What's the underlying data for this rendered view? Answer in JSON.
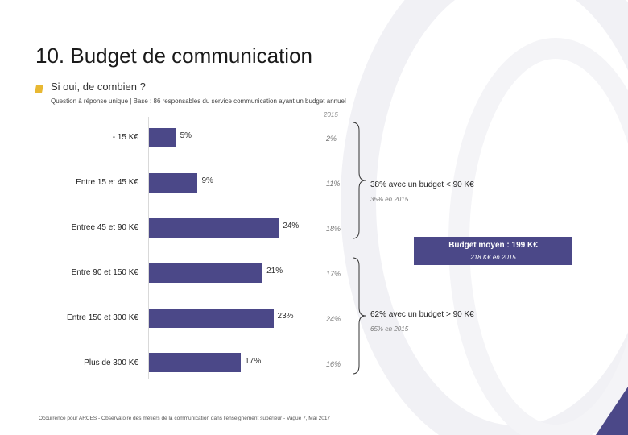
{
  "header": {
    "title": "10. Budget de communication",
    "subtitle": "Si oui, de combien ?",
    "question_note": "Question à réponse unique | Base : 86 responsables du service communication ayant un budget annuel"
  },
  "colors": {
    "bar": "#4b4888",
    "accent": "#e8b832"
  },
  "chart_data": {
    "type": "bar",
    "orientation": "horizontal",
    "categories": [
      "- 15 K€",
      "Entre 15 et 45 K€",
      "Entree 45 et 90 K€",
      "Entre 90 et 150 K€",
      "Entre 150 et 300 K€",
      "Plus de 300 K€"
    ],
    "series": [
      {
        "name": "current",
        "values": [
          5,
          9,
          24,
          21,
          23,
          17
        ],
        "labels": [
          "5%",
          "9%",
          "24%",
          "21%",
          "23%",
          "17%"
        ]
      },
      {
        "name": "2015",
        "values": [
          2,
          11,
          18,
          17,
          24,
          16
        ],
        "labels": [
          "2%",
          "11%",
          "18%",
          "17%",
          "24%",
          "16%"
        ]
      }
    ],
    "comparison_label": "2015",
    "xlim": [
      0,
      25
    ]
  },
  "annotations": {
    "low_group": {
      "main": "38% avec un budget < 90 K€",
      "sub": "35% en 2015"
    },
    "high_group": {
      "main": "62% avec un budget > 90 K€",
      "sub": "65% en 2015"
    },
    "average": {
      "main": "Budget moyen : 199 K€",
      "sub": "218 K€ en 2015"
    }
  },
  "footer": {
    "source": "Occurrence pour ARCES - Observatoire des métiers de la communication dans l'enseignement supérieur - Vague 7, Mai 2017"
  }
}
